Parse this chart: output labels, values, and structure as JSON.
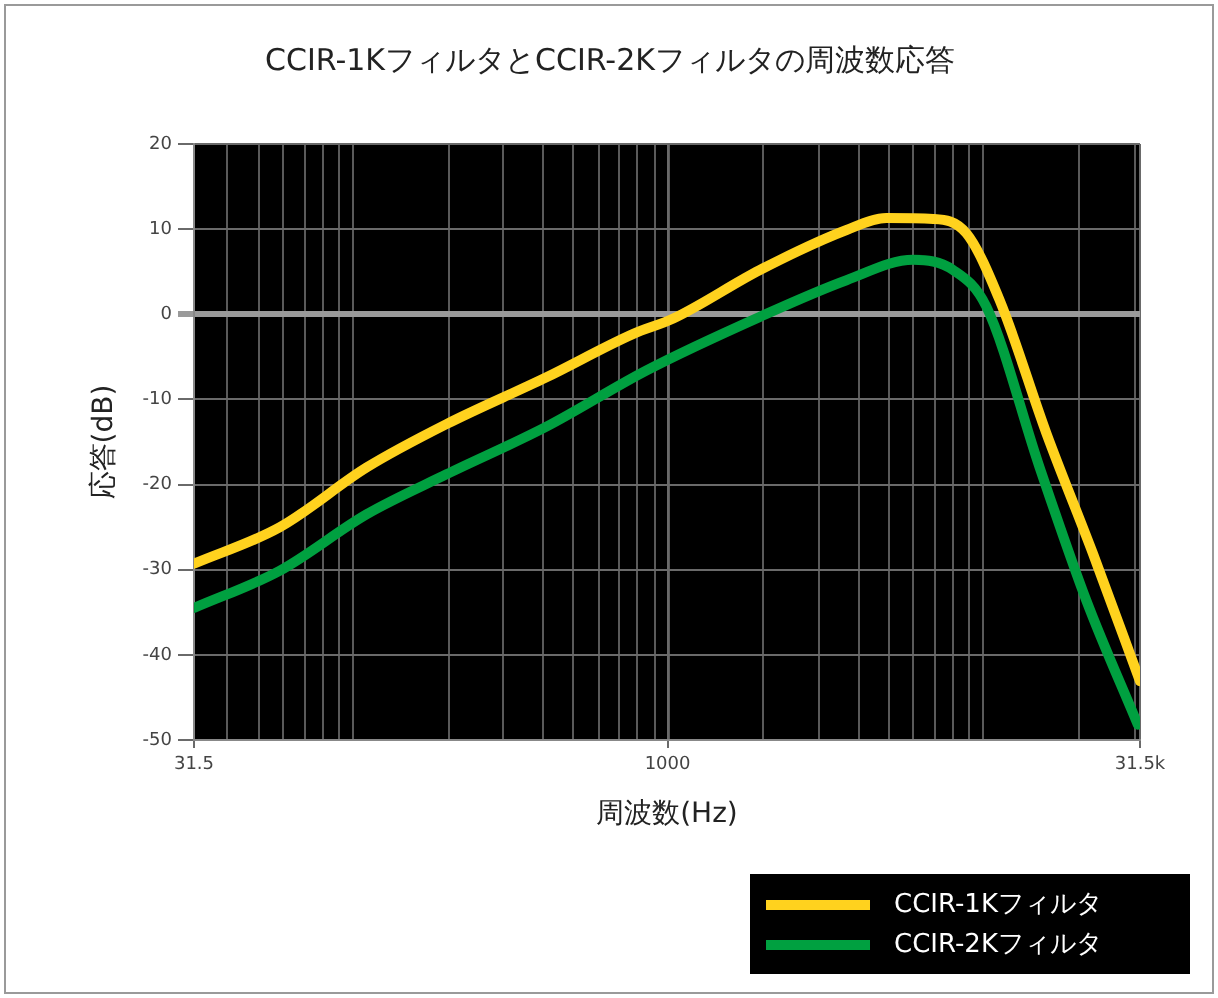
{
  "chart_data": {
    "type": "line",
    "title": "CCIR-1KフィルタとCCIR-2Kフィルタの周波数応答",
    "xlabel": "周波数(Hz)",
    "ylabel": "応答(dB)",
    "log": "x",
    "xlim": [
      31.5,
      31500
    ],
    "xticks": [
      31.5,
      1000,
      {
        "value": 31500,
        "label": "31.5k"
      }
    ],
    "ylim": [
      -50,
      20
    ],
    "yticks": [
      -50,
      -40,
      -30,
      -20,
      -10,
      0,
      10,
      20
    ],
    "grid": true,
    "legend": "bottom right",
    "marker": "none",
    "line_style": "solid",
    "series": [
      {
        "name": "CCIR-1Kフィルタ",
        "color": "#ffd21e",
        "x": [
          31.5,
          59,
          111,
          199,
          413,
          779,
          1043,
          1963,
          3695,
          4949,
          6963,
          8872,
          11320,
          15910,
          22390,
          31500
        ],
        "values": [
          -29.3,
          -25,
          -18,
          -12.9,
          -7.4,
          -2.3,
          -0.5,
          5.2,
          9.9,
          11.3,
          11.2,
          9.5,
          1.6,
          -14,
          -28.2,
          -43.1
        ]
      },
      {
        "name": "CCIR-2Kフィルタ",
        "color": "#00a040",
        "x": [
          31.5,
          59,
          111,
          199,
          413,
          857,
          1963,
          3695,
          6012,
          8054,
          10260,
          15140,
          21280,
          31000
        ],
        "values": [
          -34.5,
          -30.1,
          -23.5,
          -18.8,
          -13.2,
          -6.6,
          -0.3,
          4,
          6.4,
          5.2,
          0.9,
          -18,
          -33.6,
          -48.2
        ]
      }
    ]
  }
}
